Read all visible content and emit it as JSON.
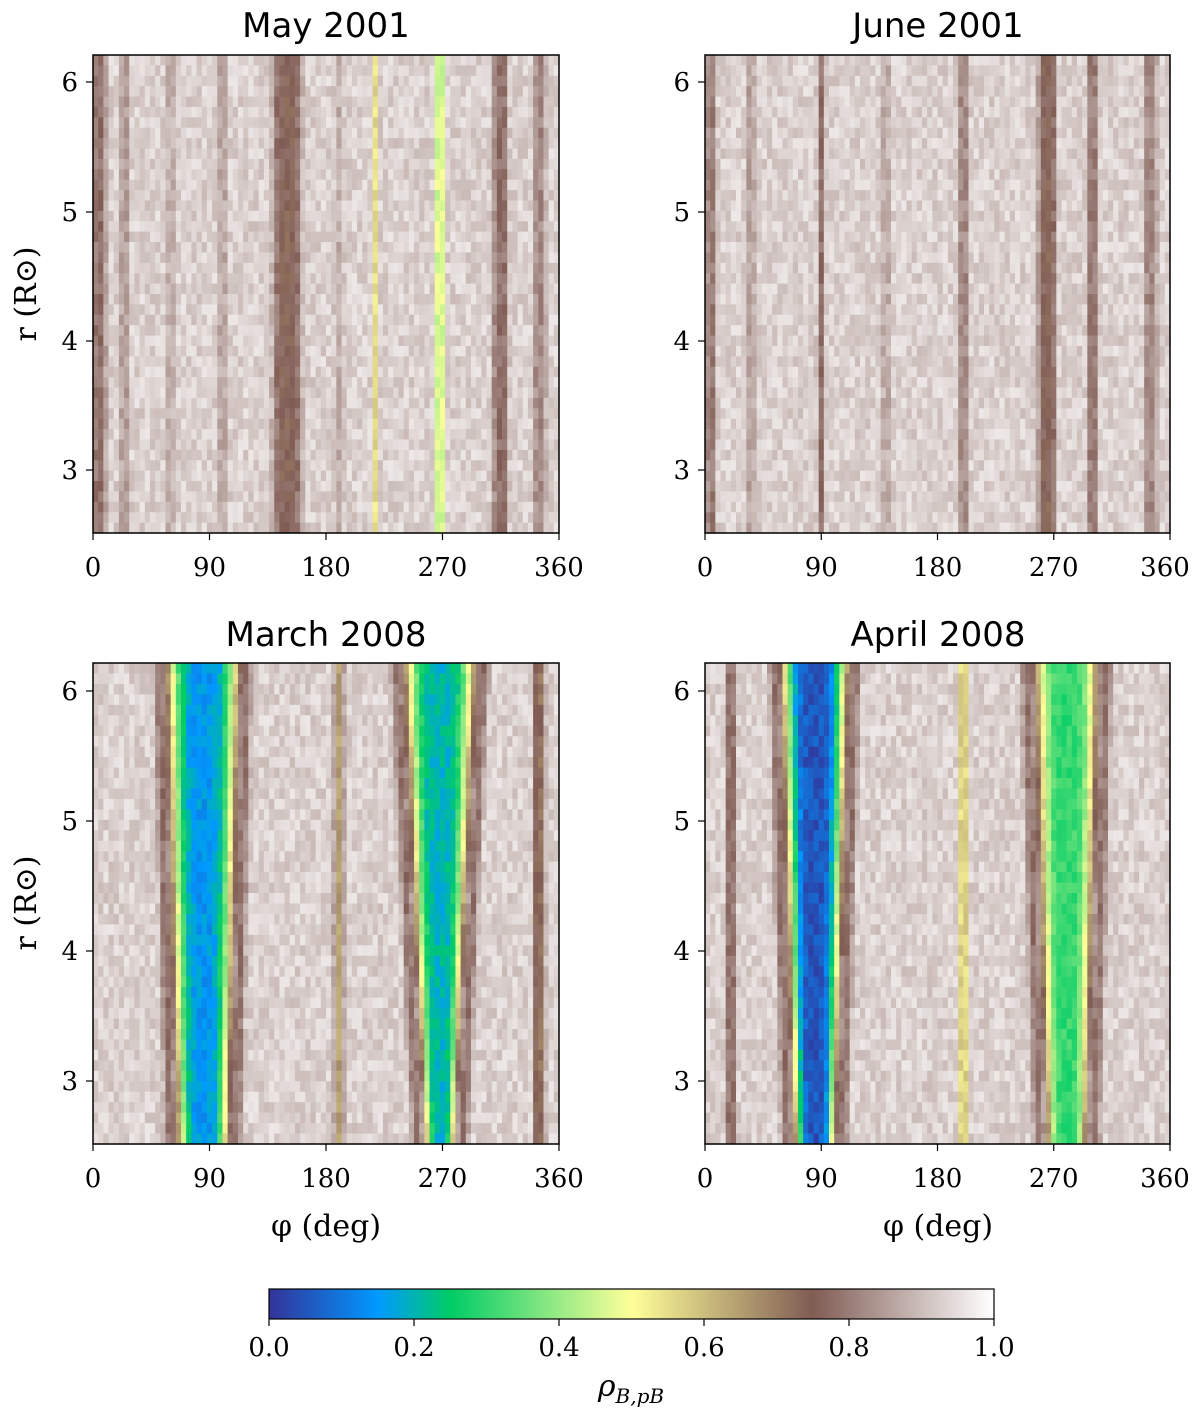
{
  "chart_data": {
    "type": "heatmap",
    "colormap": {
      "name": "terrain",
      "stops": [
        {
          "v": 0.0,
          "color": "#333399"
        },
        {
          "v": 0.15,
          "color": "#0099ff"
        },
        {
          "v": 0.25,
          "color": "#00cc66"
        },
        {
          "v": 0.5,
          "color": "#ffff99"
        },
        {
          "v": 0.75,
          "color": "#805c54"
        },
        {
          "v": 1.0,
          "color": "#ffffff"
        }
      ]
    },
    "colorbar": {
      "label": "ρB,pB",
      "label_main": "ρ",
      "label_sub": "B,pB",
      "range": [
        0.0,
        1.0
      ],
      "ticks": [
        "0.0",
        "0.2",
        "0.4",
        "0.6",
        "0.8",
        "1.0"
      ]
    },
    "xlabel": "φ (deg)",
    "ylabel": "r (R⊙)",
    "xlim": [
      0,
      360
    ],
    "ylim": [
      2.5,
      6.2
    ],
    "xticks": [
      "0",
      "90",
      "180",
      "270",
      "360"
    ],
    "yticks": [
      "3",
      "4",
      "5",
      "6"
    ],
    "panels": [
      {
        "title": "May 2001",
        "features": [
          {
            "phi": 5,
            "width": 12,
            "value": 0.78
          },
          {
            "phi": 25,
            "width": 10,
            "value": 0.85
          },
          {
            "phi": 60,
            "width": 10,
            "value": 0.88
          },
          {
            "phi": 100,
            "width": 12,
            "value": 0.87
          },
          {
            "phi": 150,
            "width": 25,
            "value": 0.75
          },
          {
            "phi": 190,
            "width": 10,
            "value": 0.88
          },
          {
            "phi": 218,
            "width": 6,
            "value": 0.55
          },
          {
            "phi": 268,
            "width": 10,
            "value": 0.45
          },
          {
            "phi": 315,
            "width": 14,
            "value": 0.78
          },
          {
            "phi": 345,
            "width": 12,
            "value": 0.82
          }
        ]
      },
      {
        "title": "June 2001",
        "features": [
          {
            "phi": 5,
            "width": 10,
            "value": 0.8
          },
          {
            "phi": 35,
            "width": 10,
            "value": 0.86
          },
          {
            "phi": 90,
            "width": 8,
            "value": 0.78
          },
          {
            "phi": 140,
            "width": 14,
            "value": 0.88
          },
          {
            "phi": 200,
            "width": 10,
            "value": 0.82
          },
          {
            "phi": 265,
            "width": 16,
            "value": 0.75
          },
          {
            "phi": 300,
            "width": 10,
            "value": 0.8
          },
          {
            "phi": 345,
            "width": 12,
            "value": 0.82
          }
        ]
      },
      {
        "title": "March 2008",
        "features": [
          {
            "phi": 85,
            "width_top": 55,
            "width_bottom": 38,
            "value": 0.15
          },
          {
            "phi": 268,
            "width_top": 55,
            "width_bottom": 22,
            "value": 0.2
          },
          {
            "phi": 190,
            "width": 8,
            "value": 0.65
          },
          {
            "phi": 345,
            "width": 10,
            "value": 0.72
          }
        ]
      },
      {
        "title": "April 2008",
        "features": [
          {
            "phi": 85,
            "width_top": 50,
            "width_bottom": 30,
            "value": 0.05
          },
          {
            "phi": 280,
            "width_top": 50,
            "width_bottom": 30,
            "value": 0.3
          },
          {
            "phi": 200,
            "width": 10,
            "value": 0.55
          },
          {
            "phi": 20,
            "width": 8,
            "value": 0.78
          }
        ]
      }
    ]
  }
}
